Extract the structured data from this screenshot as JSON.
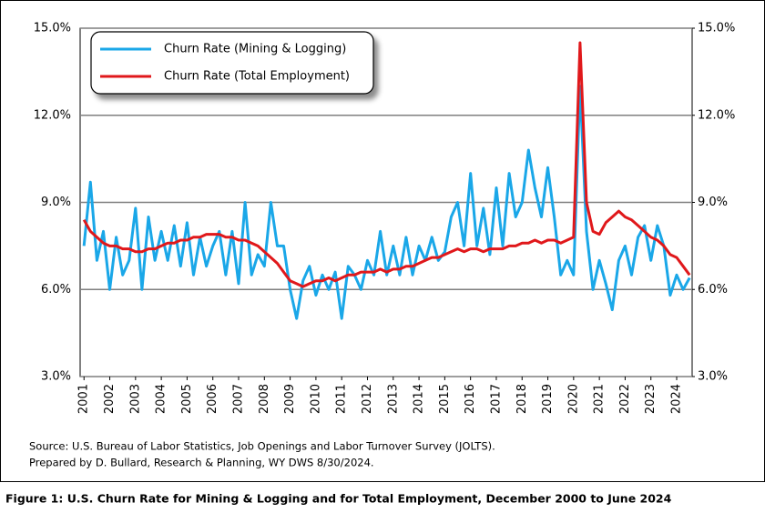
{
  "chart_data": {
    "type": "line",
    "x": [
      2001,
      2001.25,
      2001.5,
      2001.75,
      2002,
      2002.25,
      2002.5,
      2002.75,
      2003,
      2003.25,
      2003.5,
      2003.75,
      2004,
      2004.25,
      2004.5,
      2004.75,
      2005,
      2005.25,
      2005.5,
      2005.75,
      2006,
      2006.25,
      2006.5,
      2006.75,
      2007,
      2007.25,
      2007.5,
      2007.75,
      2008,
      2008.25,
      2008.5,
      2008.75,
      2009,
      2009.25,
      2009.5,
      2009.75,
      2010,
      2010.25,
      2010.5,
      2010.75,
      2011,
      2011.25,
      2011.5,
      2011.75,
      2012,
      2012.25,
      2012.5,
      2012.75,
      2013,
      2013.25,
      2013.5,
      2013.75,
      2014,
      2014.25,
      2014.5,
      2014.75,
      2015,
      2015.25,
      2015.5,
      2015.75,
      2016,
      2016.25,
      2016.5,
      2016.75,
      2017,
      2017.25,
      2017.5,
      2017.75,
      2018,
      2018.25,
      2018.5,
      2018.75,
      2019,
      2019.25,
      2019.5,
      2019.75,
      2020,
      2020.25,
      2020.5,
      2020.75,
      2021,
      2021.25,
      2021.5,
      2021.75,
      2022,
      2022.25,
      2022.5,
      2022.75,
      2023,
      2023.25,
      2023.5,
      2023.75,
      2024,
      2024.25,
      2024.5
    ],
    "series": [
      {
        "name": "Churn Rate (Mining & Logging)",
        "color": "#1aa7e8",
        "values": [
          7.5,
          9.7,
          7.0,
          8.0,
          6.0,
          7.8,
          6.5,
          7.0,
          8.8,
          6.0,
          8.5,
          7.0,
          8.0,
          7.0,
          8.2,
          6.8,
          8.3,
          6.5,
          7.8,
          6.8,
          7.5,
          8.0,
          6.5,
          8.0,
          6.2,
          9.0,
          6.5,
          7.2,
          6.8,
          9.0,
          7.5,
          7.5,
          6.0,
          5.0,
          6.3,
          6.8,
          5.8,
          6.5,
          6.0,
          6.6,
          5.0,
          6.8,
          6.5,
          6.0,
          7.0,
          6.5,
          8.0,
          6.5,
          7.5,
          6.5,
          7.8,
          6.5,
          7.5,
          7.0,
          7.8,
          7.0,
          7.3,
          8.5,
          9.0,
          7.5,
          10.0,
          7.5,
          8.8,
          7.2,
          9.5,
          7.5,
          10.0,
          8.5,
          9.0,
          10.8,
          9.5,
          8.5,
          10.2,
          8.5,
          6.5,
          7.0,
          6.5,
          13.0,
          8.0,
          6.0,
          7.0,
          6.2,
          5.3,
          7.0,
          7.5,
          6.5,
          7.8,
          8.2,
          7.0,
          8.2,
          7.5,
          5.8,
          6.5,
          6.0,
          6.4
        ]
      },
      {
        "name": "Churn Rate (Total Employment)",
        "color": "#e0181b",
        "values": [
          8.4,
          8.0,
          7.8,
          7.6,
          7.5,
          7.5,
          7.4,
          7.4,
          7.3,
          7.3,
          7.4,
          7.4,
          7.5,
          7.6,
          7.6,
          7.7,
          7.7,
          7.8,
          7.8,
          7.9,
          7.9,
          7.9,
          7.8,
          7.8,
          7.7,
          7.7,
          7.6,
          7.5,
          7.3,
          7.1,
          6.9,
          6.6,
          6.3,
          6.2,
          6.1,
          6.2,
          6.3,
          6.3,
          6.4,
          6.3,
          6.4,
          6.5,
          6.5,
          6.6,
          6.6,
          6.6,
          6.7,
          6.6,
          6.7,
          6.7,
          6.8,
          6.8,
          6.9,
          7.0,
          7.1,
          7.1,
          7.2,
          7.3,
          7.4,
          7.3,
          7.4,
          7.4,
          7.3,
          7.4,
          7.4,
          7.4,
          7.5,
          7.5,
          7.6,
          7.6,
          7.7,
          7.6,
          7.7,
          7.7,
          7.6,
          7.7,
          7.8,
          14.5,
          9.0,
          8.0,
          7.9,
          8.3,
          8.5,
          8.7,
          8.5,
          8.4,
          8.2,
          8.0,
          7.8,
          7.7,
          7.5,
          7.2,
          7.1,
          6.8,
          6.5
        ]
      }
    ],
    "xlim": [
      2000.85,
      2024.6
    ],
    "xticks": [
      2001,
      2002,
      2003,
      2004,
      2005,
      2006,
      2007,
      2008,
      2009,
      2010,
      2011,
      2012,
      2013,
      2014,
      2015,
      2016,
      2017,
      2018,
      2019,
      2020,
      2021,
      2022,
      2023,
      2024
    ],
    "ylim": [
      3,
      15
    ],
    "yticks": [
      {
        "value": 3,
        "label": "3.0%"
      },
      {
        "value": 6,
        "label": "6.0%"
      },
      {
        "value": 9,
        "label": "9.0%"
      },
      {
        "value": 12,
        "label": "12.0%"
      },
      {
        "value": 15,
        "label": "15.0%"
      }
    ],
    "y2lim": [
      3,
      15
    ],
    "y2ticks": [
      {
        "value": 3,
        "label": "3.0%"
      },
      {
        "value": 6,
        "label": "6.0%"
      },
      {
        "value": 9,
        "label": "9.0%"
      },
      {
        "value": 12,
        "label": "12.0%"
      },
      {
        "value": 15,
        "label": "15.0%"
      }
    ],
    "grid": true,
    "legend": "upper left",
    "annotations": [
      "Source: U.S. Bureau of Labor Statistics, Job Openings and Labor Turnover Survey (JOLTS).",
      "Prepared by D. Bullard, Research & Planning, WY DWS 8/30/2024."
    ],
    "caption": "Figure 1: U.S. Churn Rate for Mining & Logging and for Total Employment, December 2000 to June 2024"
  }
}
